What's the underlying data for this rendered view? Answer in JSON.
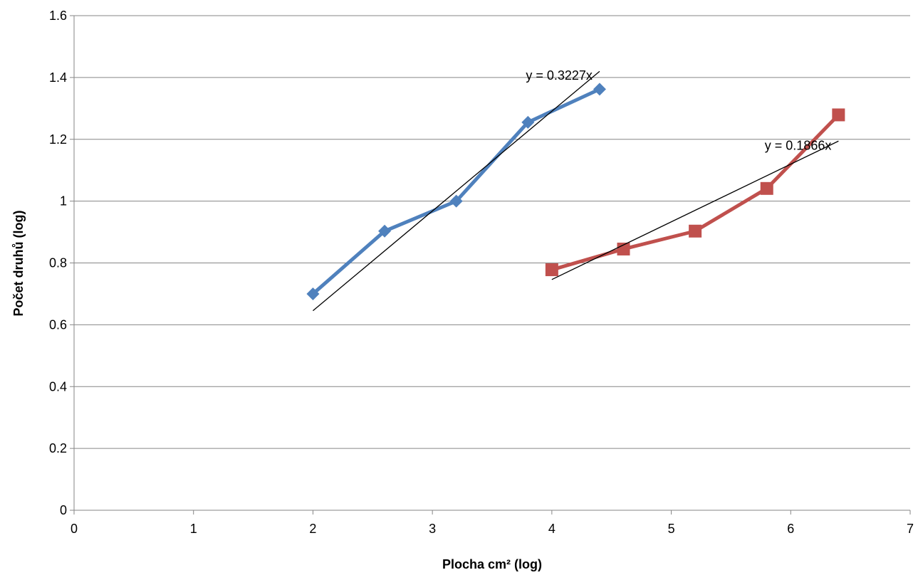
{
  "chart_data": {
    "type": "line",
    "title": "",
    "xlabel": "Plocha cm² (log)",
    "ylabel": "Počet druhů (log)",
    "xlim": [
      0,
      7
    ],
    "ylim": [
      0,
      1.6
    ],
    "x_ticks": [
      0,
      1,
      2,
      3,
      4,
      5,
      6,
      7
    ],
    "y_ticks": [
      0,
      0.2,
      0.4,
      0.6,
      0.8,
      1,
      1.2,
      1.4,
      1.6
    ],
    "grid": "horizontal",
    "legend": "none",
    "series": [
      {
        "color": "#4F81BD",
        "marker": "diamond",
        "points": [
          [
            2.0,
            0.7
          ],
          [
            2.6,
            0.903
          ],
          [
            3.2,
            1.0
          ],
          [
            3.8,
            1.255
          ],
          [
            4.4,
            1.362
          ]
        ],
        "trendline": {
          "slope": 0.3227,
          "x_range": [
            2.0,
            4.4
          ],
          "label": "y = 0.3227x"
        }
      },
      {
        "color": "#C0504D",
        "marker": "square",
        "points": [
          [
            4.0,
            0.778
          ],
          [
            4.6,
            0.845
          ],
          [
            5.2,
            0.903
          ],
          [
            5.8,
            1.041
          ],
          [
            6.4,
            1.279
          ]
        ],
        "trendline": {
          "slope": 0.1866,
          "x_range": [
            4.0,
            6.4
          ],
          "label": "y = 0.1866x"
        }
      }
    ]
  }
}
